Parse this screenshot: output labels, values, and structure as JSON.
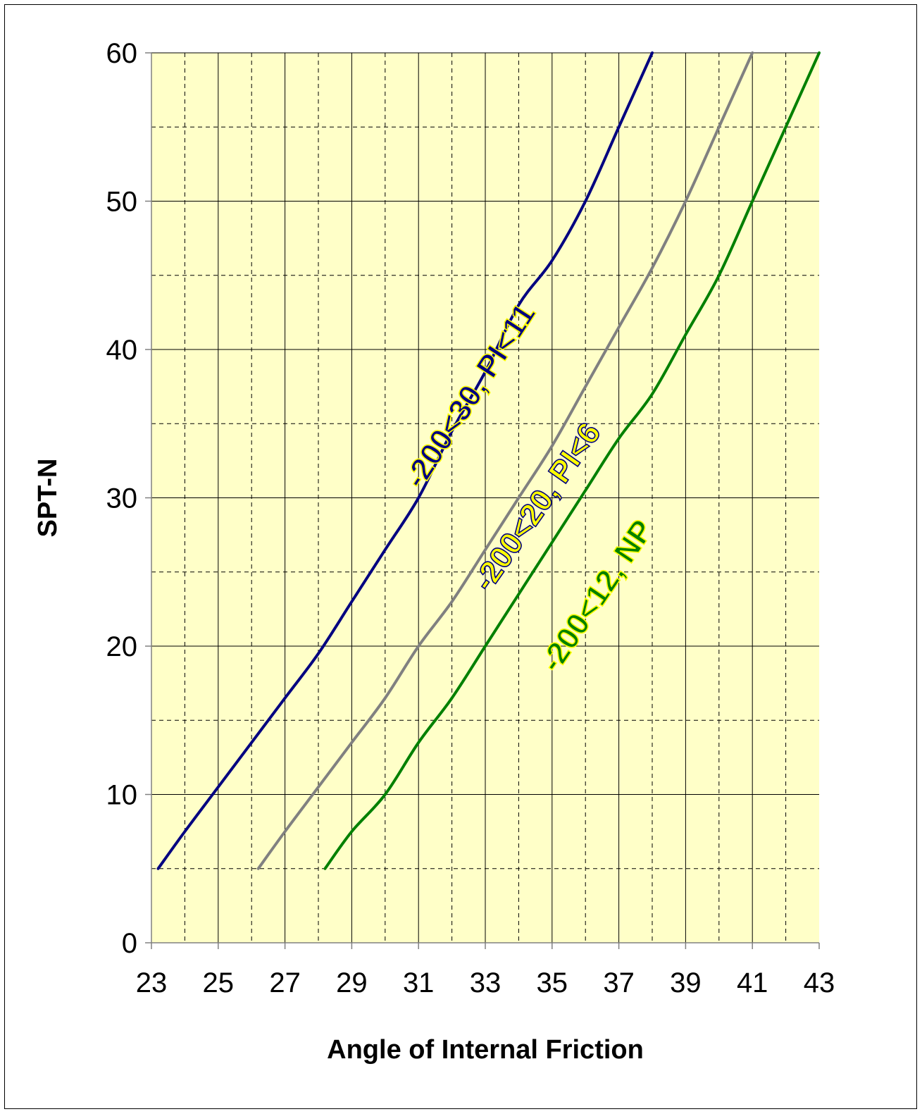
{
  "chart_data": {
    "type": "line",
    "title": "",
    "xlabel": "Angle of Internal Friction",
    "ylabel": "SPT-N",
    "xlim": [
      23,
      43
    ],
    "ylim": [
      0,
      60
    ],
    "x_ticks": [
      "23",
      "25",
      "27",
      "29",
      "31",
      "33",
      "35",
      "37",
      "39",
      "41",
      "43"
    ],
    "y_ticks": [
      "0",
      "10",
      "20",
      "30",
      "40",
      "50",
      "60"
    ],
    "grid": true,
    "minor_grid": "dashed",
    "background_color": "#ffffc8",
    "series": [
      {
        "name": "-200<30, PI<11",
        "color": "#000080",
        "label_fill": "#000080",
        "label_stroke": "#ffff00",
        "points": [
          [
            23.2,
            5
          ],
          [
            24.0,
            7.5
          ],
          [
            25.0,
            10.5
          ],
          [
            26.0,
            13.5
          ],
          [
            27.0,
            16.5
          ],
          [
            28.0,
            19.5
          ],
          [
            29.0,
            23
          ],
          [
            30.0,
            26.5
          ],
          [
            31.0,
            30
          ],
          [
            32.0,
            34.5
          ],
          [
            33.0,
            38.5
          ],
          [
            34.0,
            43
          ],
          [
            35.0,
            46
          ],
          [
            36.0,
            50
          ],
          [
            37.0,
            55
          ],
          [
            38.0,
            60
          ]
        ]
      },
      {
        "name": "-200<20, PI<6",
        "color": "#808080",
        "label_fill": "#ffff00",
        "label_stroke": "#000080",
        "points": [
          [
            26.2,
            5
          ],
          [
            27.0,
            7.5
          ],
          [
            28.0,
            10.5
          ],
          [
            29.0,
            13.5
          ],
          [
            30.0,
            16.5
          ],
          [
            31.0,
            20
          ],
          [
            32.0,
            23
          ],
          [
            33.0,
            26.5
          ],
          [
            34.0,
            30
          ],
          [
            35.0,
            33.5
          ],
          [
            36.0,
            37.5
          ],
          [
            37.0,
            41.5
          ],
          [
            38.0,
            45.5
          ],
          [
            39.0,
            50
          ],
          [
            40.0,
            55
          ],
          [
            41.0,
            60
          ]
        ]
      },
      {
        "name": "-200<12, NP",
        "color": "#008000",
        "label_fill": "#008000",
        "label_stroke": "#ffff00",
        "points": [
          [
            28.2,
            5
          ],
          [
            29.0,
            7.5
          ],
          [
            30.0,
            10
          ],
          [
            31.0,
            13.5
          ],
          [
            32.0,
            16.5
          ],
          [
            33.0,
            20
          ],
          [
            34.0,
            23.5
          ],
          [
            35.0,
            27
          ],
          [
            36.0,
            30.5
          ],
          [
            37.0,
            34
          ],
          [
            38.0,
            37
          ],
          [
            39.0,
            41
          ],
          [
            40.0,
            45
          ],
          [
            41.0,
            50
          ],
          [
            42.0,
            55
          ],
          [
            43.0,
            60
          ]
        ]
      }
    ]
  }
}
